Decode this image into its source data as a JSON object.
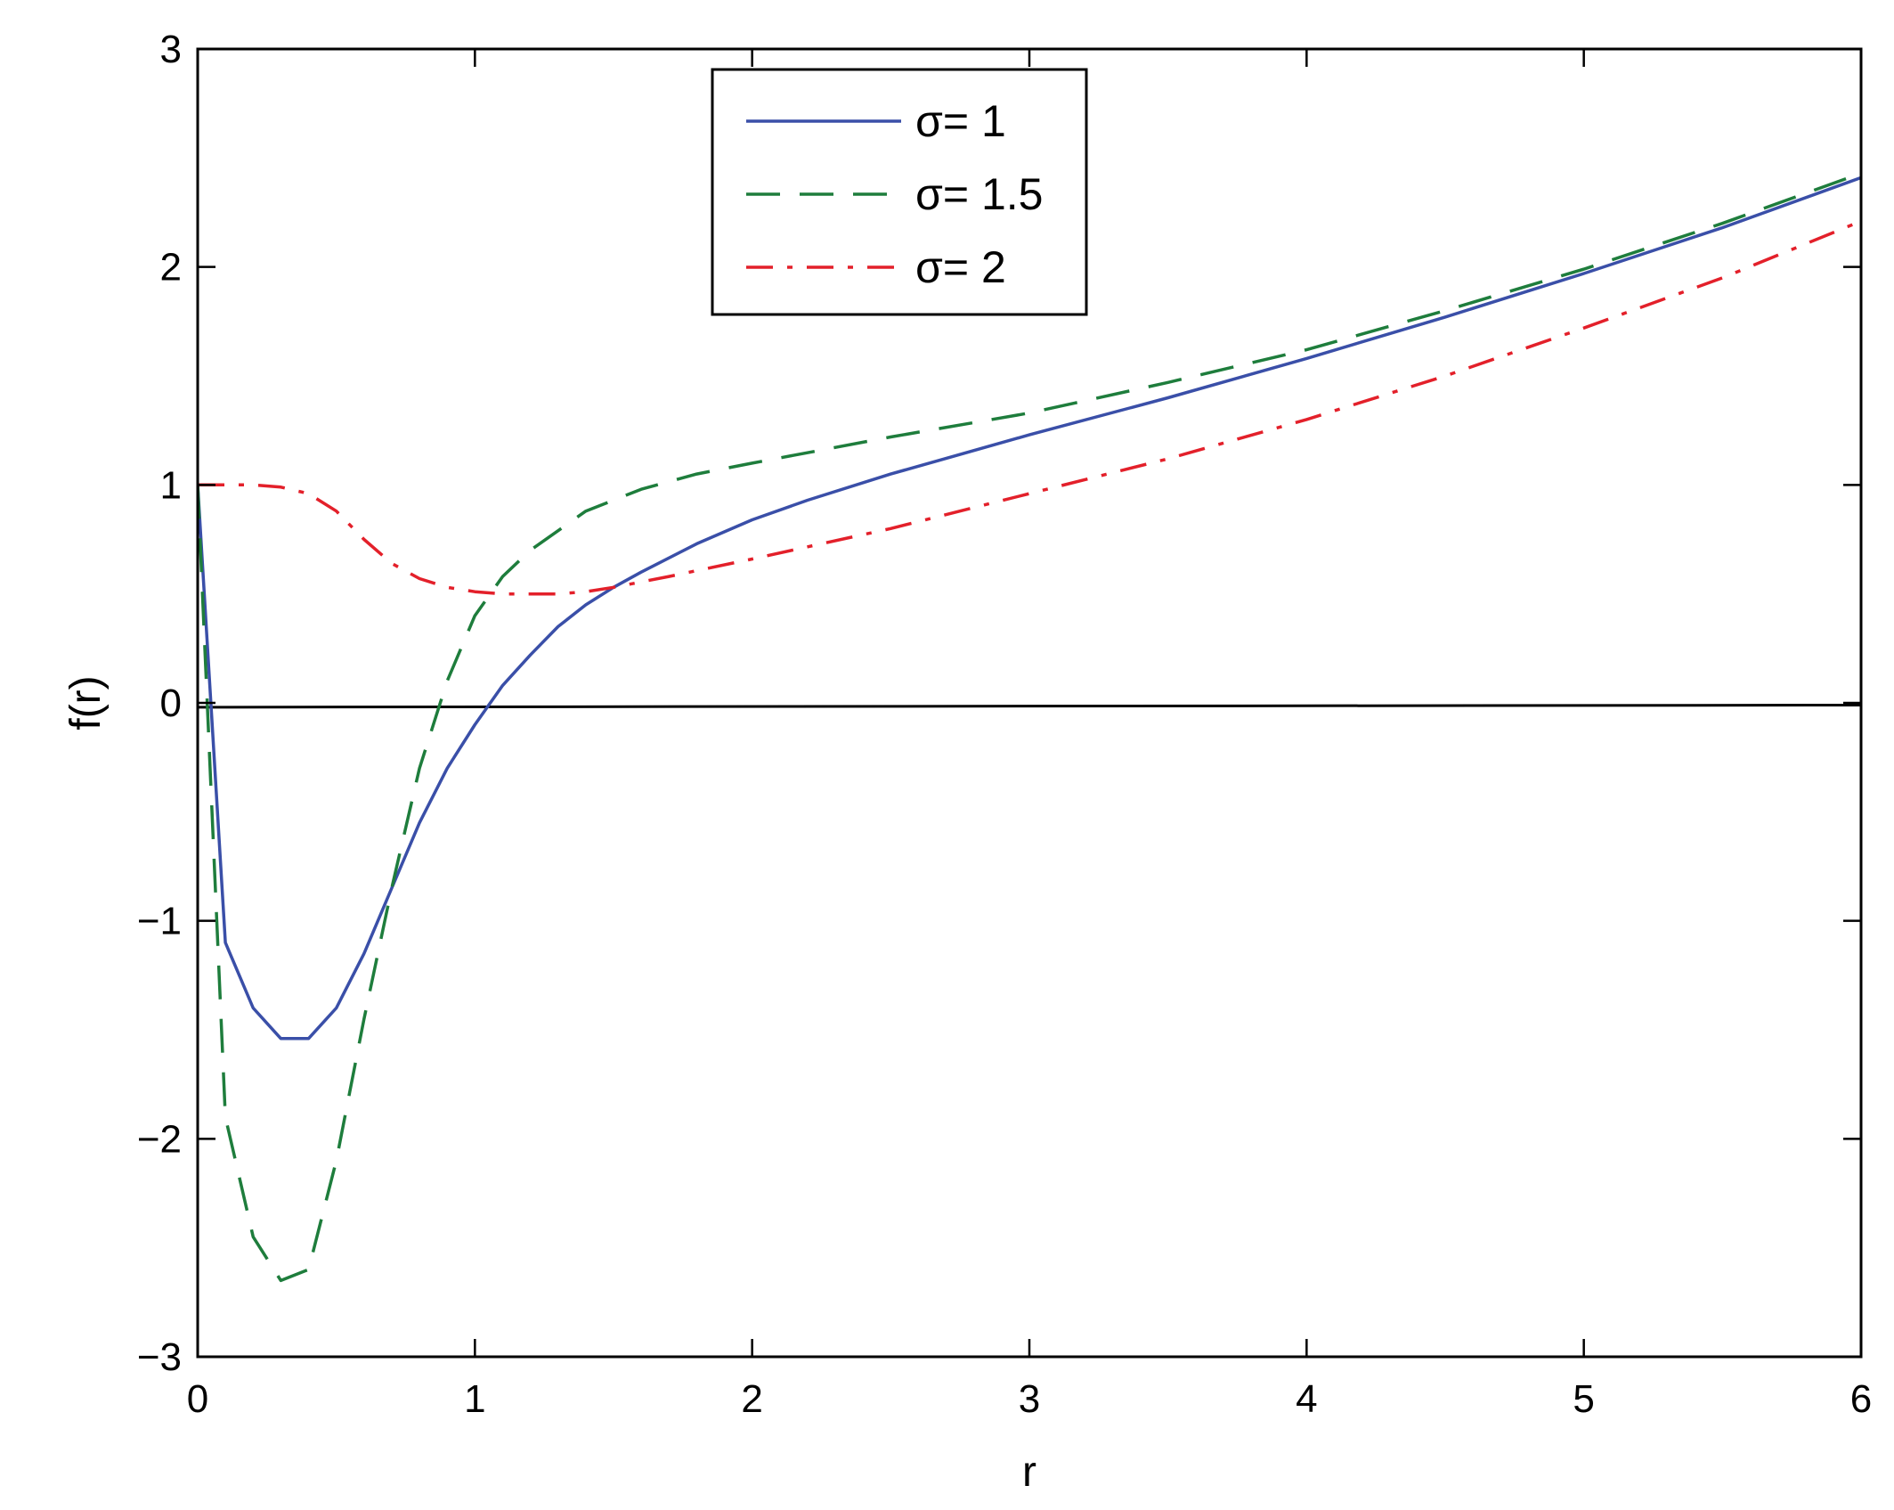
{
  "chart_data": {
    "type": "line",
    "xlabel": "r",
    "ylabel": "f(r)",
    "xlim": [
      0,
      6
    ],
    "ylim": [
      -3,
      3
    ],
    "xticks": [
      0,
      1,
      2,
      3,
      4,
      5,
      6
    ],
    "yticks": [
      -3,
      -2,
      -1,
      0,
      1,
      2,
      3
    ],
    "xtick_labels": [
      "0",
      "1",
      "2",
      "3",
      "4",
      "5",
      "6"
    ],
    "ytick_labels": [
      "−3",
      "−2",
      "−1",
      "0",
      "1",
      "2",
      "3"
    ],
    "grid": false,
    "legend_position": "top-center",
    "reference_line": {
      "x": [
        0,
        6
      ],
      "y": [
        -0.02,
        -0.01
      ],
      "color": "#000000"
    },
    "series": [
      {
        "name": "σ= 1",
        "color": "#3a4fa8",
        "style": "solid",
        "x": [
          0,
          0.1,
          0.2,
          0.3,
          0.4,
          0.5,
          0.6,
          0.7,
          0.8,
          0.9,
          1.0,
          1.1,
          1.2,
          1.3,
          1.4,
          1.5,
          1.6,
          1.8,
          2.0,
          2.2,
          2.5,
          3.0,
          3.5,
          4.0,
          4.5,
          5.0,
          5.5,
          6.0
        ],
        "y": [
          1.0,
          -1.1,
          -1.4,
          -1.54,
          -1.54,
          -1.4,
          -1.15,
          -0.85,
          -0.55,
          -0.3,
          -0.1,
          0.08,
          0.22,
          0.35,
          0.45,
          0.53,
          0.6,
          0.73,
          0.84,
          0.93,
          1.05,
          1.23,
          1.4,
          1.58,
          1.77,
          1.97,
          2.18,
          2.41
        ]
      },
      {
        "name": "σ= 1.5",
        "color": "#1e7d3c",
        "style": "dashed",
        "x": [
          0,
          0.1,
          0.2,
          0.3,
          0.4,
          0.5,
          0.6,
          0.7,
          0.8,
          0.9,
          1.0,
          1.1,
          1.2,
          1.4,
          1.6,
          1.8,
          2.0,
          2.5,
          3.0,
          3.5,
          4.0,
          4.5,
          5.0,
          5.5,
          6.0
        ],
        "y": [
          1.0,
          -1.9,
          -2.45,
          -2.65,
          -2.6,
          -2.1,
          -1.45,
          -0.85,
          -0.3,
          0.1,
          0.4,
          0.58,
          0.7,
          0.88,
          0.98,
          1.05,
          1.1,
          1.22,
          1.33,
          1.47,
          1.62,
          1.8,
          1.99,
          2.2,
          2.43
        ]
      },
      {
        "name": "σ= 2",
        "color": "#e3202a",
        "style": "dashdot",
        "x": [
          0,
          0.2,
          0.3,
          0.4,
          0.5,
          0.6,
          0.7,
          0.8,
          0.9,
          1.0,
          1.1,
          1.2,
          1.3,
          1.4,
          1.5,
          1.7,
          2.0,
          2.5,
          3.0,
          3.5,
          4.0,
          4.5,
          5.0,
          5.5,
          6.0
        ],
        "y": [
          1.0,
          1.0,
          0.99,
          0.96,
          0.88,
          0.75,
          0.64,
          0.57,
          0.53,
          0.51,
          0.5,
          0.5,
          0.5,
          0.51,
          0.53,
          0.58,
          0.66,
          0.8,
          0.96,
          1.12,
          1.3,
          1.5,
          1.72,
          1.95,
          2.21
        ]
      }
    ]
  }
}
